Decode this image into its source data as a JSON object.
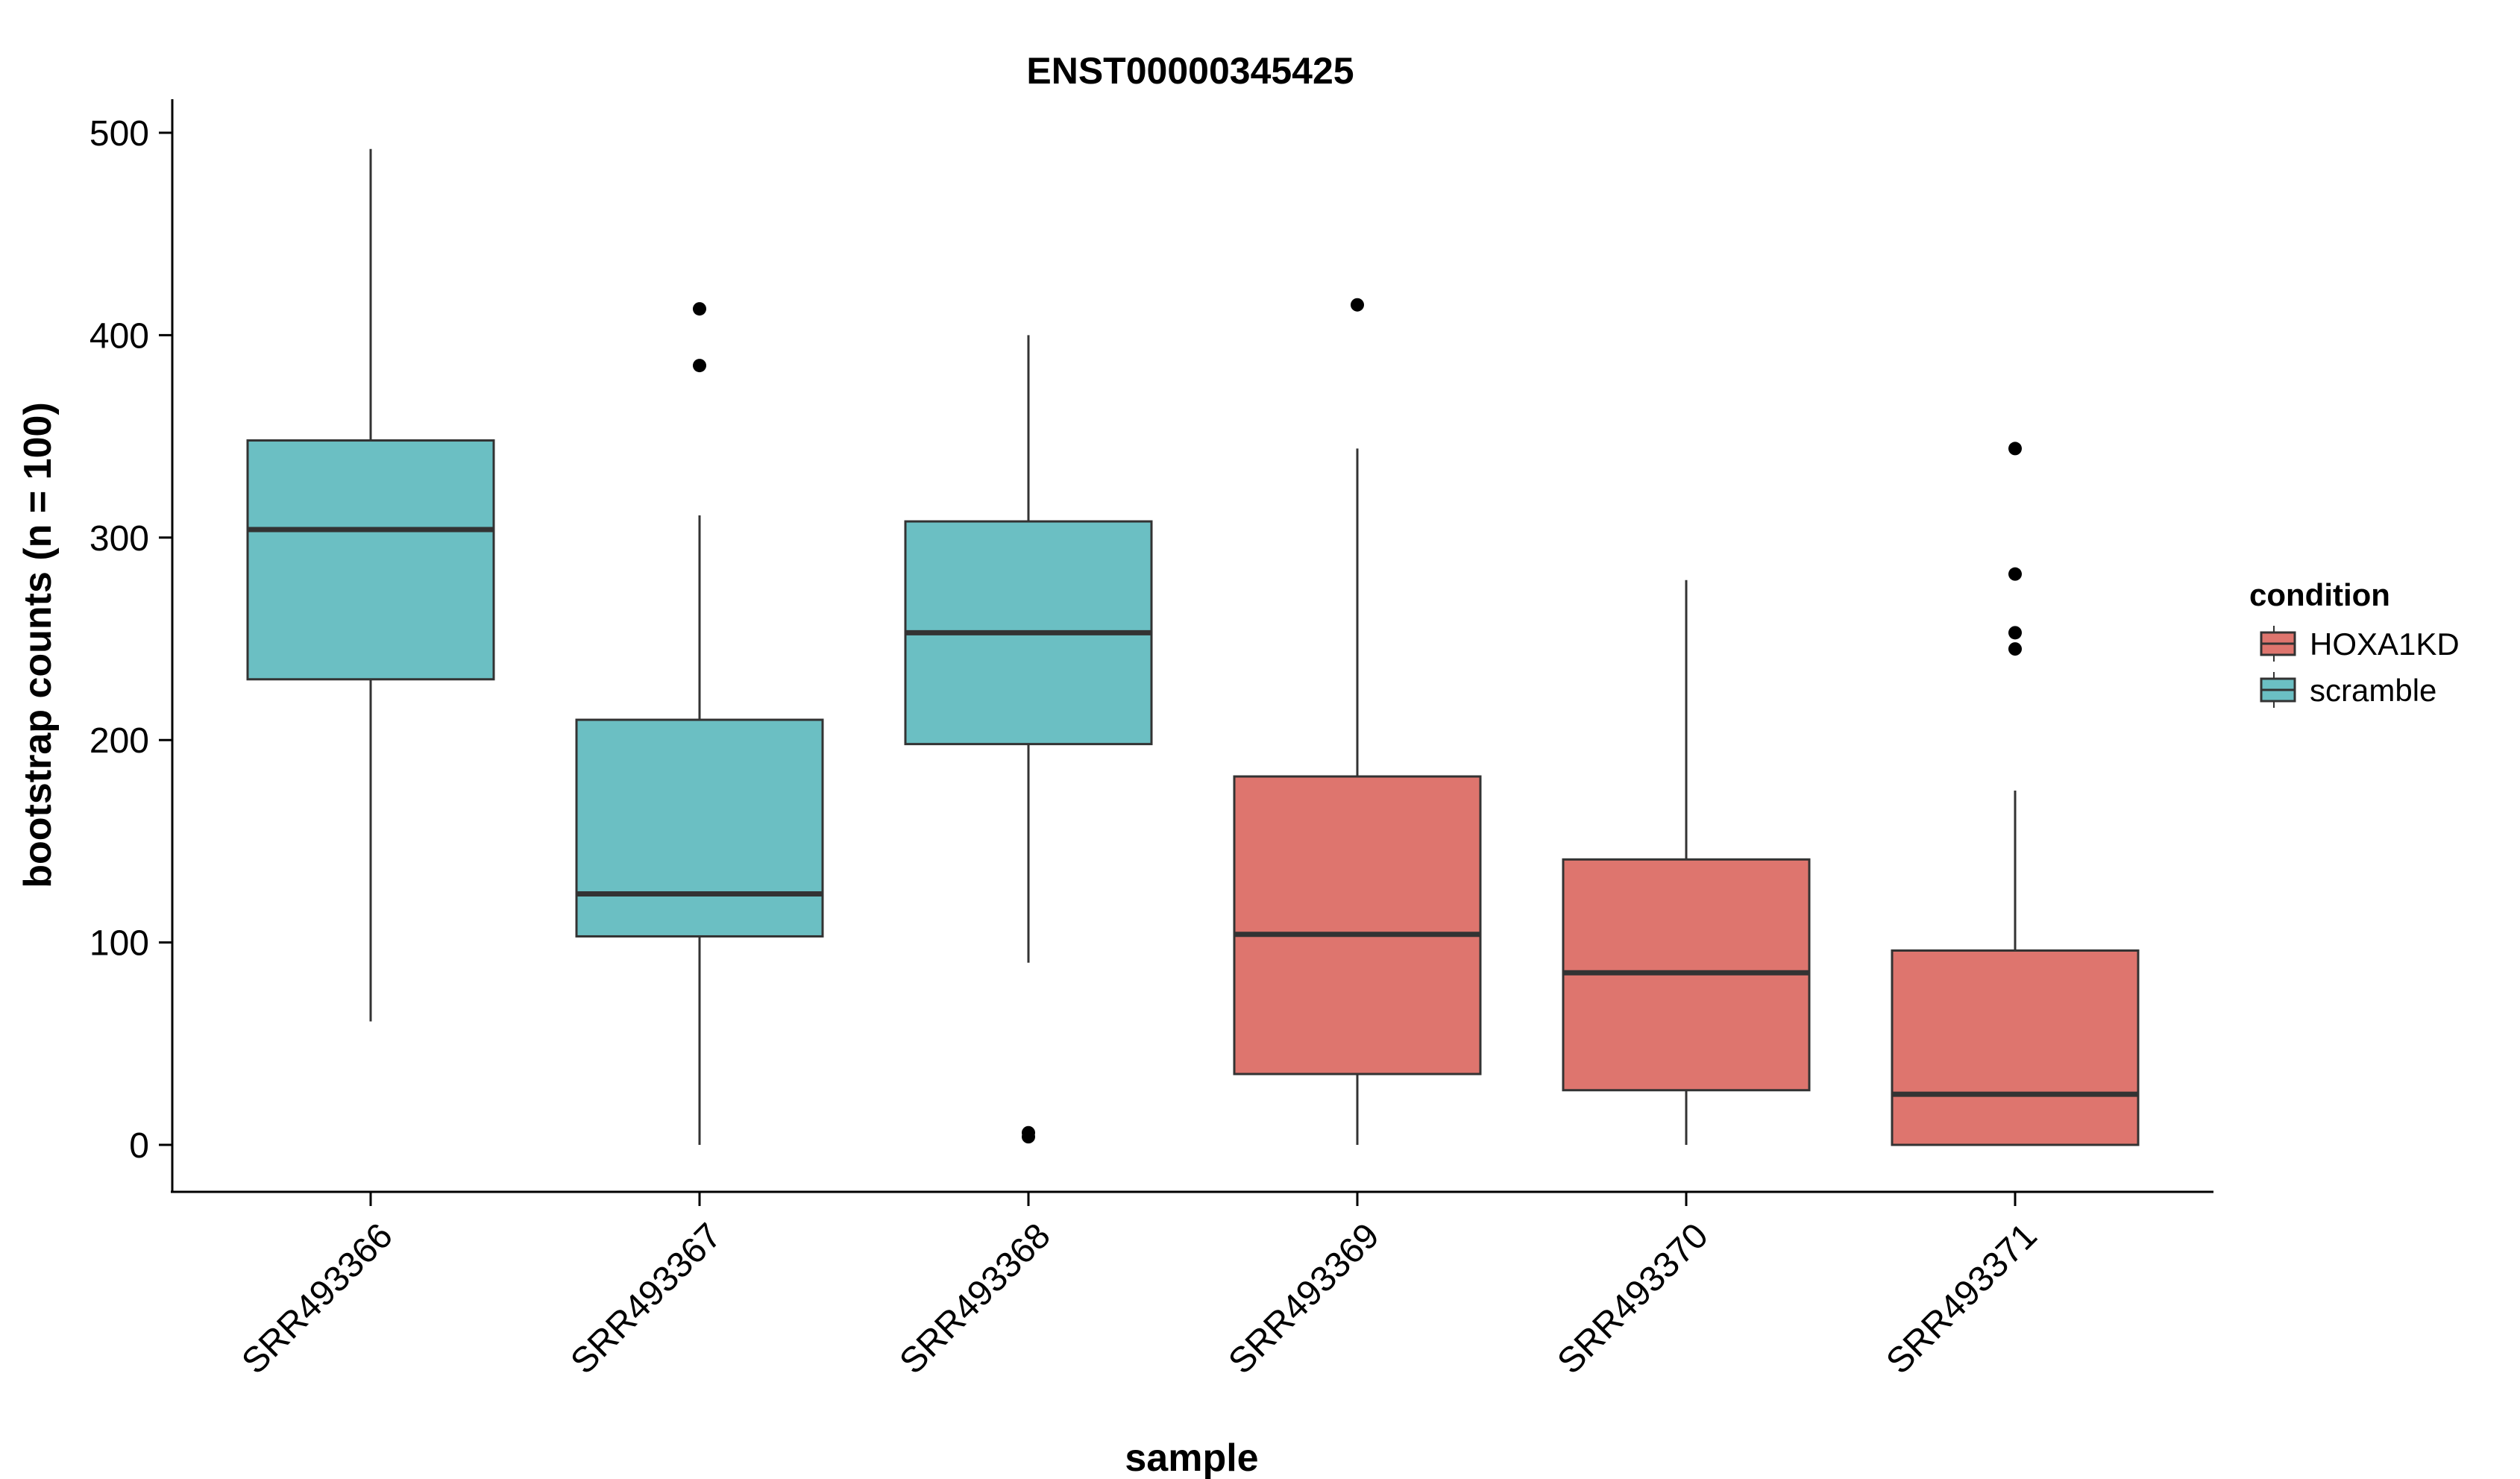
{
  "chart_data": {
    "type": "boxplot",
    "title": "ENST00000345425",
    "xlabel": "sample",
    "ylabel": "bootstrap counts (n = 100)",
    "ylim": [
      -25,
      520
    ],
    "yticks": [
      0,
      100,
      200,
      300,
      400,
      500
    ],
    "grid": false,
    "legend": {
      "title": "condition",
      "position": "right",
      "entries": [
        {
          "label": "HOXA1KD",
          "color": "#de756e"
        },
        {
          "label": "scramble",
          "color": "#6bbfc3"
        }
      ]
    },
    "categories": [
      "SRR493366",
      "SRR493367",
      "SRR493368",
      "SRR493369",
      "SRR493370",
      "SRR493371"
    ],
    "boxes": [
      {
        "sample": "SRR493366",
        "condition": "scramble",
        "whisker_low": 61,
        "q1": 230,
        "median": 304,
        "q3": 348,
        "whisker_high": 492,
        "outliers": []
      },
      {
        "sample": "SRR493367",
        "condition": "scramble",
        "whisker_low": 0,
        "q1": 103,
        "median": 124,
        "q3": 210,
        "whisker_high": 311,
        "outliers": [
          385,
          413
        ]
      },
      {
        "sample": "SRR493368",
        "condition": "scramble",
        "whisker_low": 90,
        "q1": 198,
        "median": 253,
        "q3": 308,
        "whisker_high": 400,
        "outliers": [
          4,
          6
        ]
      },
      {
        "sample": "SRR493369",
        "condition": "HOXA1KD",
        "whisker_low": 0,
        "q1": 35,
        "median": 104,
        "q3": 182,
        "whisker_high": 344,
        "outliers": [
          415
        ]
      },
      {
        "sample": "SRR493370",
        "condition": "HOXA1KD",
        "whisker_low": 0,
        "q1": 27,
        "median": 85,
        "q3": 141,
        "whisker_high": 279,
        "outliers": []
      },
      {
        "sample": "SRR493371",
        "condition": "HOXA1KD",
        "whisker_low": 0,
        "q1": 0,
        "median": 25,
        "q3": 96,
        "whisker_high": 175,
        "outliers": [
          245,
          253,
          282,
          344
        ]
      }
    ]
  }
}
